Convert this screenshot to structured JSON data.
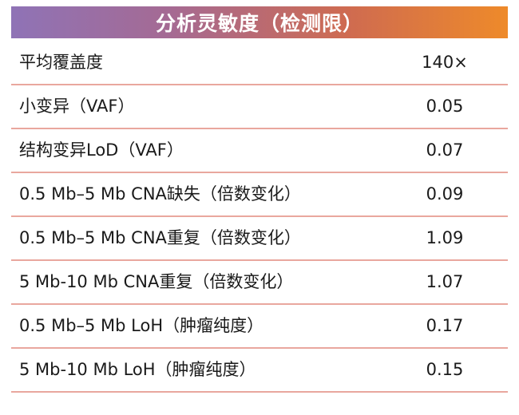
{
  "header": {
    "title": "分析灵敏度（检测限）"
  },
  "table": {
    "rows": [
      {
        "label": "平均覆盖度",
        "value": "140×"
      },
      {
        "label": "小变异（VAF）",
        "value": "0.05"
      },
      {
        "label": "结构变异LoD（VAF）",
        "value": "0.07"
      },
      {
        "label": "0.5 Mb–5 Mb CNA缺失（倍数变化）",
        "value": "0.09"
      },
      {
        "label": "0.5 Mb–5 Mb CNA重复（倍数变化）",
        "value": "1.09"
      },
      {
        "label": "5 Mb-10 Mb CNA重复（倍数变化）",
        "value": "1.07"
      },
      {
        "label": "0.5 Mb–5 Mb LoH（肿瘤纯度）",
        "value": "0.17"
      },
      {
        "label": "5 Mb-10 Mb LoH（肿瘤纯度）",
        "value": "0.15"
      }
    ]
  },
  "colors": {
    "header_gradient_start": "#8f73b6",
    "header_gradient_end": "#ee8a2a",
    "row_divider": "#e9a79e",
    "text": "#1a1a1a"
  }
}
